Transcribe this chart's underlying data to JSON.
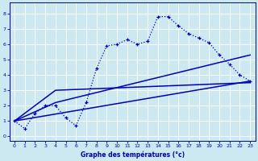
{
  "xlabel": "Graphe des températures (°c)",
  "bg_color": "#cce8f0",
  "grid_color": "#ffffff",
  "line_color": "#0000bb",
  "xlim": [
    -0.5,
    23.5
  ],
  "ylim": [
    -0.3,
    8.7
  ],
  "xticks": [
    0,
    1,
    2,
    3,
    4,
    5,
    6,
    7,
    8,
    9,
    10,
    11,
    12,
    13,
    14,
    15,
    16,
    17,
    18,
    19,
    20,
    21,
    22,
    23
  ],
  "yticks": [
    0,
    1,
    2,
    3,
    4,
    5,
    6,
    7,
    8
  ],
  "curve1_x": [
    0,
    1,
    2,
    3,
    4,
    5,
    6,
    7,
    8,
    9,
    10,
    11,
    12,
    13,
    14,
    15,
    16,
    17,
    18,
    19,
    20,
    21,
    22,
    23
  ],
  "curve1_y": [
    1.0,
    0.5,
    1.5,
    2.0,
    2.0,
    1.2,
    0.7,
    2.2,
    4.4,
    5.9,
    6.0,
    6.3,
    6.0,
    6.2,
    7.8,
    7.8,
    7.2,
    6.7,
    6.4,
    6.1,
    5.3,
    4.7,
    4.0,
    3.6
  ],
  "line1_x": [
    0,
    23
  ],
  "line1_y": [
    1.0,
    3.6
  ],
  "line2_x": [
    0,
    4,
    23
  ],
  "line2_y": [
    1.0,
    3.0,
    3.5
  ],
  "line3_x": [
    0,
    4,
    23
  ],
  "line3_y": [
    1.0,
    2.2,
    5.3
  ]
}
